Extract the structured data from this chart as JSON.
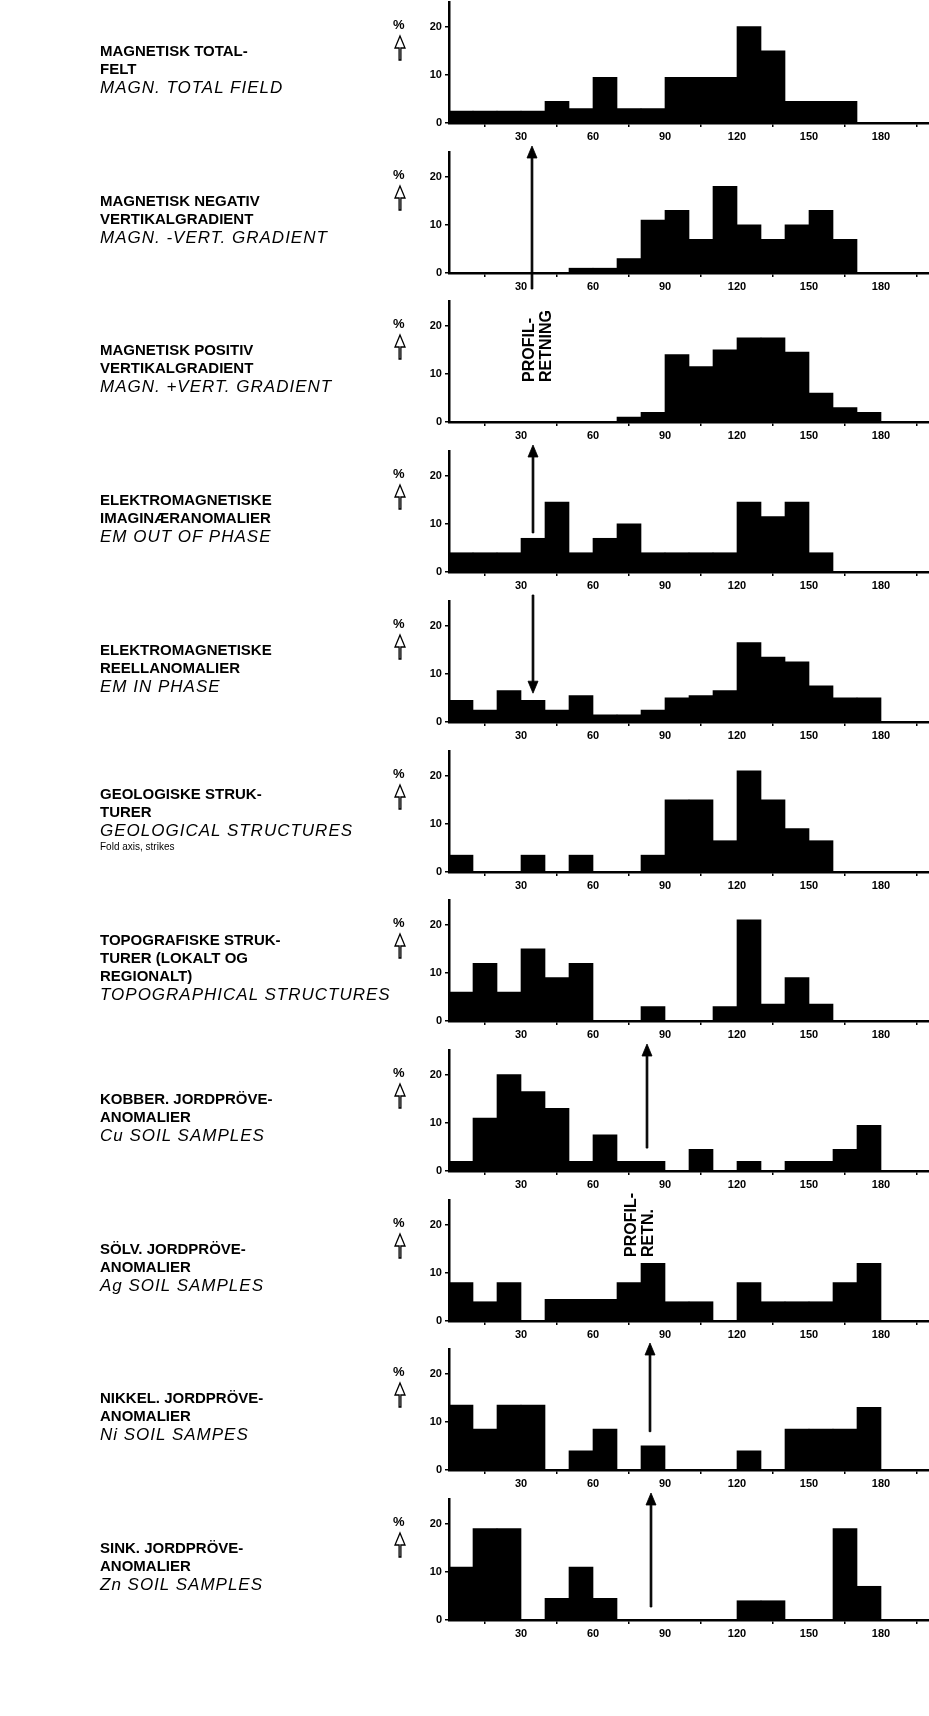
{
  "chart_data": [
    {
      "type": "histogram",
      "annotations": [
        "MAGNETISK TOTAL-\nFELT",
        "MAGN. TOTAL FIELD"
      ],
      "ylabel": "%",
      "bins": [
        0,
        10,
        20,
        30,
        40,
        50,
        60,
        70,
        80,
        90,
        100,
        110,
        120,
        130,
        140,
        150,
        160,
        170,
        180
      ],
      "values": [
        2.5,
        2.5,
        2.5,
        2.5,
        4.5,
        3,
        9.5,
        3,
        3,
        9.5,
        9.5,
        9.5,
        20,
        15,
        4.5,
        4.5,
        4.5,
        0
      ],
      "color": "#000000",
      "xlim": [
        0,
        200
      ],
      "ylim": [
        0,
        25
      ],
      "xticks": [
        30,
        60,
        90,
        120,
        150,
        180
      ],
      "yticks": [
        0,
        10,
        20
      ]
    },
    {
      "type": "histogram",
      "annotations": [
        "MAGNETISK NEGATIV\nVERTIKALGRADIENT",
        "MAGN. -VERT. GRADIENT"
      ],
      "ylabel": "%",
      "bins": [
        0,
        10,
        20,
        30,
        40,
        50,
        60,
        70,
        80,
        90,
        100,
        110,
        120,
        130,
        140,
        150,
        160,
        170,
        180
      ],
      "values": [
        0,
        0,
        0,
        0,
        0,
        1,
        1,
        3,
        11,
        13,
        7,
        18,
        10,
        7,
        10,
        13,
        7,
        0
      ],
      "color": "#000000",
      "xlim": [
        0,
        200
      ],
      "ylim": [
        0,
        25
      ],
      "xticks": [
        30,
        60,
        90,
        120,
        150,
        180
      ],
      "yticks": [
        0,
        10,
        20
      ]
    },
    {
      "type": "histogram",
      "annotations": [
        "MAGNETISK POSITIV\nVERTIKALGRADIENT",
        "MAGN. +VERT. GRADIENT",
        "PROFIL-\nRETNING"
      ],
      "ylabel": "%",
      "bins": [
        0,
        10,
        20,
        30,
        40,
        50,
        60,
        70,
        80,
        90,
        100,
        110,
        120,
        130,
        140,
        150,
        160,
        170,
        180
      ],
      "values": [
        0,
        0,
        0,
        0,
        0,
        0,
        0,
        1,
        2,
        14,
        11.5,
        15,
        17.5,
        17.5,
        14.5,
        6,
        3,
        2
      ],
      "color": "#000000",
      "xlim": [
        0,
        200
      ],
      "ylim": [
        0,
        25
      ],
      "xticks": [
        30,
        60,
        90,
        120,
        150,
        180
      ],
      "yticks": [
        0,
        10,
        20
      ]
    },
    {
      "type": "histogram",
      "annotations": [
        "ELEKTROMAGNETISKE\nIMAGINÆRANOMALIER",
        "EM OUT OF PHASE"
      ],
      "ylabel": "%",
      "bins": [
        0,
        10,
        20,
        30,
        40,
        50,
        60,
        70,
        80,
        90,
        100,
        110,
        120,
        130,
        140,
        150,
        160,
        170,
        180
      ],
      "values": [
        4,
        4,
        4,
        7,
        14.5,
        4,
        7,
        10,
        4,
        4,
        4,
        4,
        14.5,
        11.5,
        14.5,
        4,
        0,
        0
      ],
      "color": "#000000",
      "xlim": [
        0,
        200
      ],
      "ylim": [
        0,
        25
      ],
      "xticks": [
        30,
        60,
        90,
        120,
        150,
        180
      ],
      "yticks": [
        0,
        10,
        20
      ]
    },
    {
      "type": "histogram",
      "annotations": [
        "ELEKTROMAGNETISKE\nREELLANOMALIER",
        "EM IN PHASE"
      ],
      "ylabel": "%",
      "bins": [
        0,
        10,
        20,
        30,
        40,
        50,
        60,
        70,
        80,
        90,
        100,
        110,
        120,
        130,
        140,
        150,
        160,
        170,
        180
      ],
      "values": [
        4.5,
        2.5,
        6.5,
        4.5,
        2.5,
        5.5,
        1.5,
        1.5,
        2.5,
        5,
        5.5,
        6.5,
        16.5,
        13.5,
        12.5,
        7.5,
        5,
        5
      ],
      "color": "#000000",
      "xlim": [
        0,
        200
      ],
      "ylim": [
        0,
        25
      ],
      "xticks": [
        30,
        60,
        90,
        120,
        150,
        180
      ],
      "yticks": [
        0,
        10,
        20
      ]
    },
    {
      "type": "histogram",
      "annotations": [
        "GEOLOGISKE STRUK-\nTURER",
        "GEOLOGICAL STRUCTURES",
        "Fold axis, strikes"
      ],
      "ylabel": "%",
      "bins": [
        0,
        10,
        20,
        30,
        40,
        50,
        60,
        70,
        80,
        90,
        100,
        110,
        120,
        130,
        140,
        150,
        160,
        170,
        180
      ],
      "values": [
        3.5,
        0,
        0,
        3.5,
        0,
        3.5,
        0,
        0,
        3.5,
        15,
        15,
        6.5,
        21,
        15,
        9,
        6.5,
        0,
        0
      ],
      "color": "#000000",
      "xlim": [
        0,
        200
      ],
      "ylim": [
        0,
        25
      ],
      "xticks": [
        30,
        60,
        90,
        120,
        150,
        180
      ],
      "yticks": [
        0,
        10,
        20
      ]
    },
    {
      "type": "histogram",
      "annotations": [
        "TOPOGRAFISKE STRUK-\nTURER (LOKALT OG\nREGIONALT)",
        "TOPOGRAPHICAL STRUCTURES"
      ],
      "ylabel": "%",
      "bins": [
        0,
        10,
        20,
        30,
        40,
        50,
        60,
        70,
        80,
        90,
        100,
        110,
        120,
        130,
        140,
        150,
        160,
        170,
        180
      ],
      "values": [
        6,
        12,
        6,
        15,
        9,
        12,
        0,
        0,
        3,
        0,
        0,
        3,
        21,
        3.5,
        9,
        3.5,
        0,
        0
      ],
      "color": "#000000",
      "xlim": [
        0,
        200
      ],
      "ylim": [
        0,
        25
      ],
      "xticks": [
        30,
        60,
        90,
        120,
        150,
        180
      ],
      "yticks": [
        0,
        10,
        20
      ]
    },
    {
      "type": "histogram",
      "annotations": [
        "KOBBER. JORDPRÖVE-\nANOMALIER",
        "Cu SOIL SAMPLES"
      ],
      "ylabel": "%",
      "bins": [
        0,
        10,
        20,
        30,
        40,
        50,
        60,
        70,
        80,
        90,
        100,
        110,
        120,
        130,
        140,
        150,
        160,
        170,
        180
      ],
      "values": [
        2,
        11,
        20,
        16.5,
        13,
        2,
        7.5,
        2,
        2,
        0,
        4.5,
        0,
        2,
        0,
        2,
        2,
        4.5,
        9.5
      ],
      "color": "#000000",
      "xlim": [
        0,
        200
      ],
      "ylim": [
        0,
        25
      ],
      "xticks": [
        30,
        60,
        90,
        120,
        150,
        180
      ],
      "yticks": [
        0,
        10,
        20
      ]
    },
    {
      "type": "histogram",
      "annotations": [
        "SÖLV. JORDPRÖVE-\nANOMALIER",
        "Ag SOIL SAMPLES",
        "PROFIL-\nRETN."
      ],
      "ylabel": "%",
      "bins": [
        0,
        10,
        20,
        30,
        40,
        50,
        60,
        70,
        80,
        90,
        100,
        110,
        120,
        130,
        140,
        150,
        160,
        170,
        180
      ],
      "values": [
        8,
        4,
        8,
        0,
        4.5,
        4.5,
        4.5,
        8,
        12,
        4,
        4,
        0,
        8,
        4,
        4,
        4,
        8,
        12
      ],
      "color": "#000000",
      "xlim": [
        0,
        200
      ],
      "ylim": [
        0,
        25
      ],
      "xticks": [
        30,
        60,
        90,
        120,
        150,
        180
      ],
      "yticks": [
        0,
        10,
        20
      ]
    },
    {
      "type": "histogram",
      "annotations": [
        "NIKKEL. JORDPRÖVE-\nANOMALIER",
        "Ni SOIL SAMPES"
      ],
      "ylabel": "%",
      "bins": [
        0,
        10,
        20,
        30,
        40,
        50,
        60,
        70,
        80,
        90,
        100,
        110,
        120,
        130,
        140,
        150,
        160,
        170,
        180
      ],
      "values": [
        13.5,
        8.5,
        13.5,
        13.5,
        0,
        4,
        8.5,
        0,
        5,
        0,
        0,
        0,
        4,
        0,
        8.5,
        8.5,
        8.5,
        13
      ],
      "color": "#000000",
      "xlim": [
        0,
        200
      ],
      "ylim": [
        0,
        25
      ],
      "xticks": [
        30,
        60,
        90,
        120,
        150,
        180
      ],
      "yticks": [
        0,
        10,
        20
      ]
    },
    {
      "type": "histogram",
      "annotations": [
        "SINK. JORDPRÖVE-\nANOMALIER",
        "Zn SOIL SAMPLES"
      ],
      "ylabel": "%",
      "bins": [
        0,
        10,
        20,
        30,
        40,
        50,
        60,
        70,
        80,
        90,
        100,
        110,
        120,
        130,
        140,
        150,
        160,
        170,
        180
      ],
      "values": [
        11,
        19,
        19,
        0,
        4.5,
        11,
        4.5,
        0,
        0,
        0,
        0,
        0,
        4,
        4,
        0,
        0,
        19,
        7
      ],
      "color": "#000000",
      "xlim": [
        0,
        200
      ],
      "ylim": [
        0,
        25
      ],
      "xticks": [
        30,
        60,
        90,
        120,
        150,
        180
      ],
      "yticks": [
        0,
        10,
        20
      ]
    }
  ]
}
